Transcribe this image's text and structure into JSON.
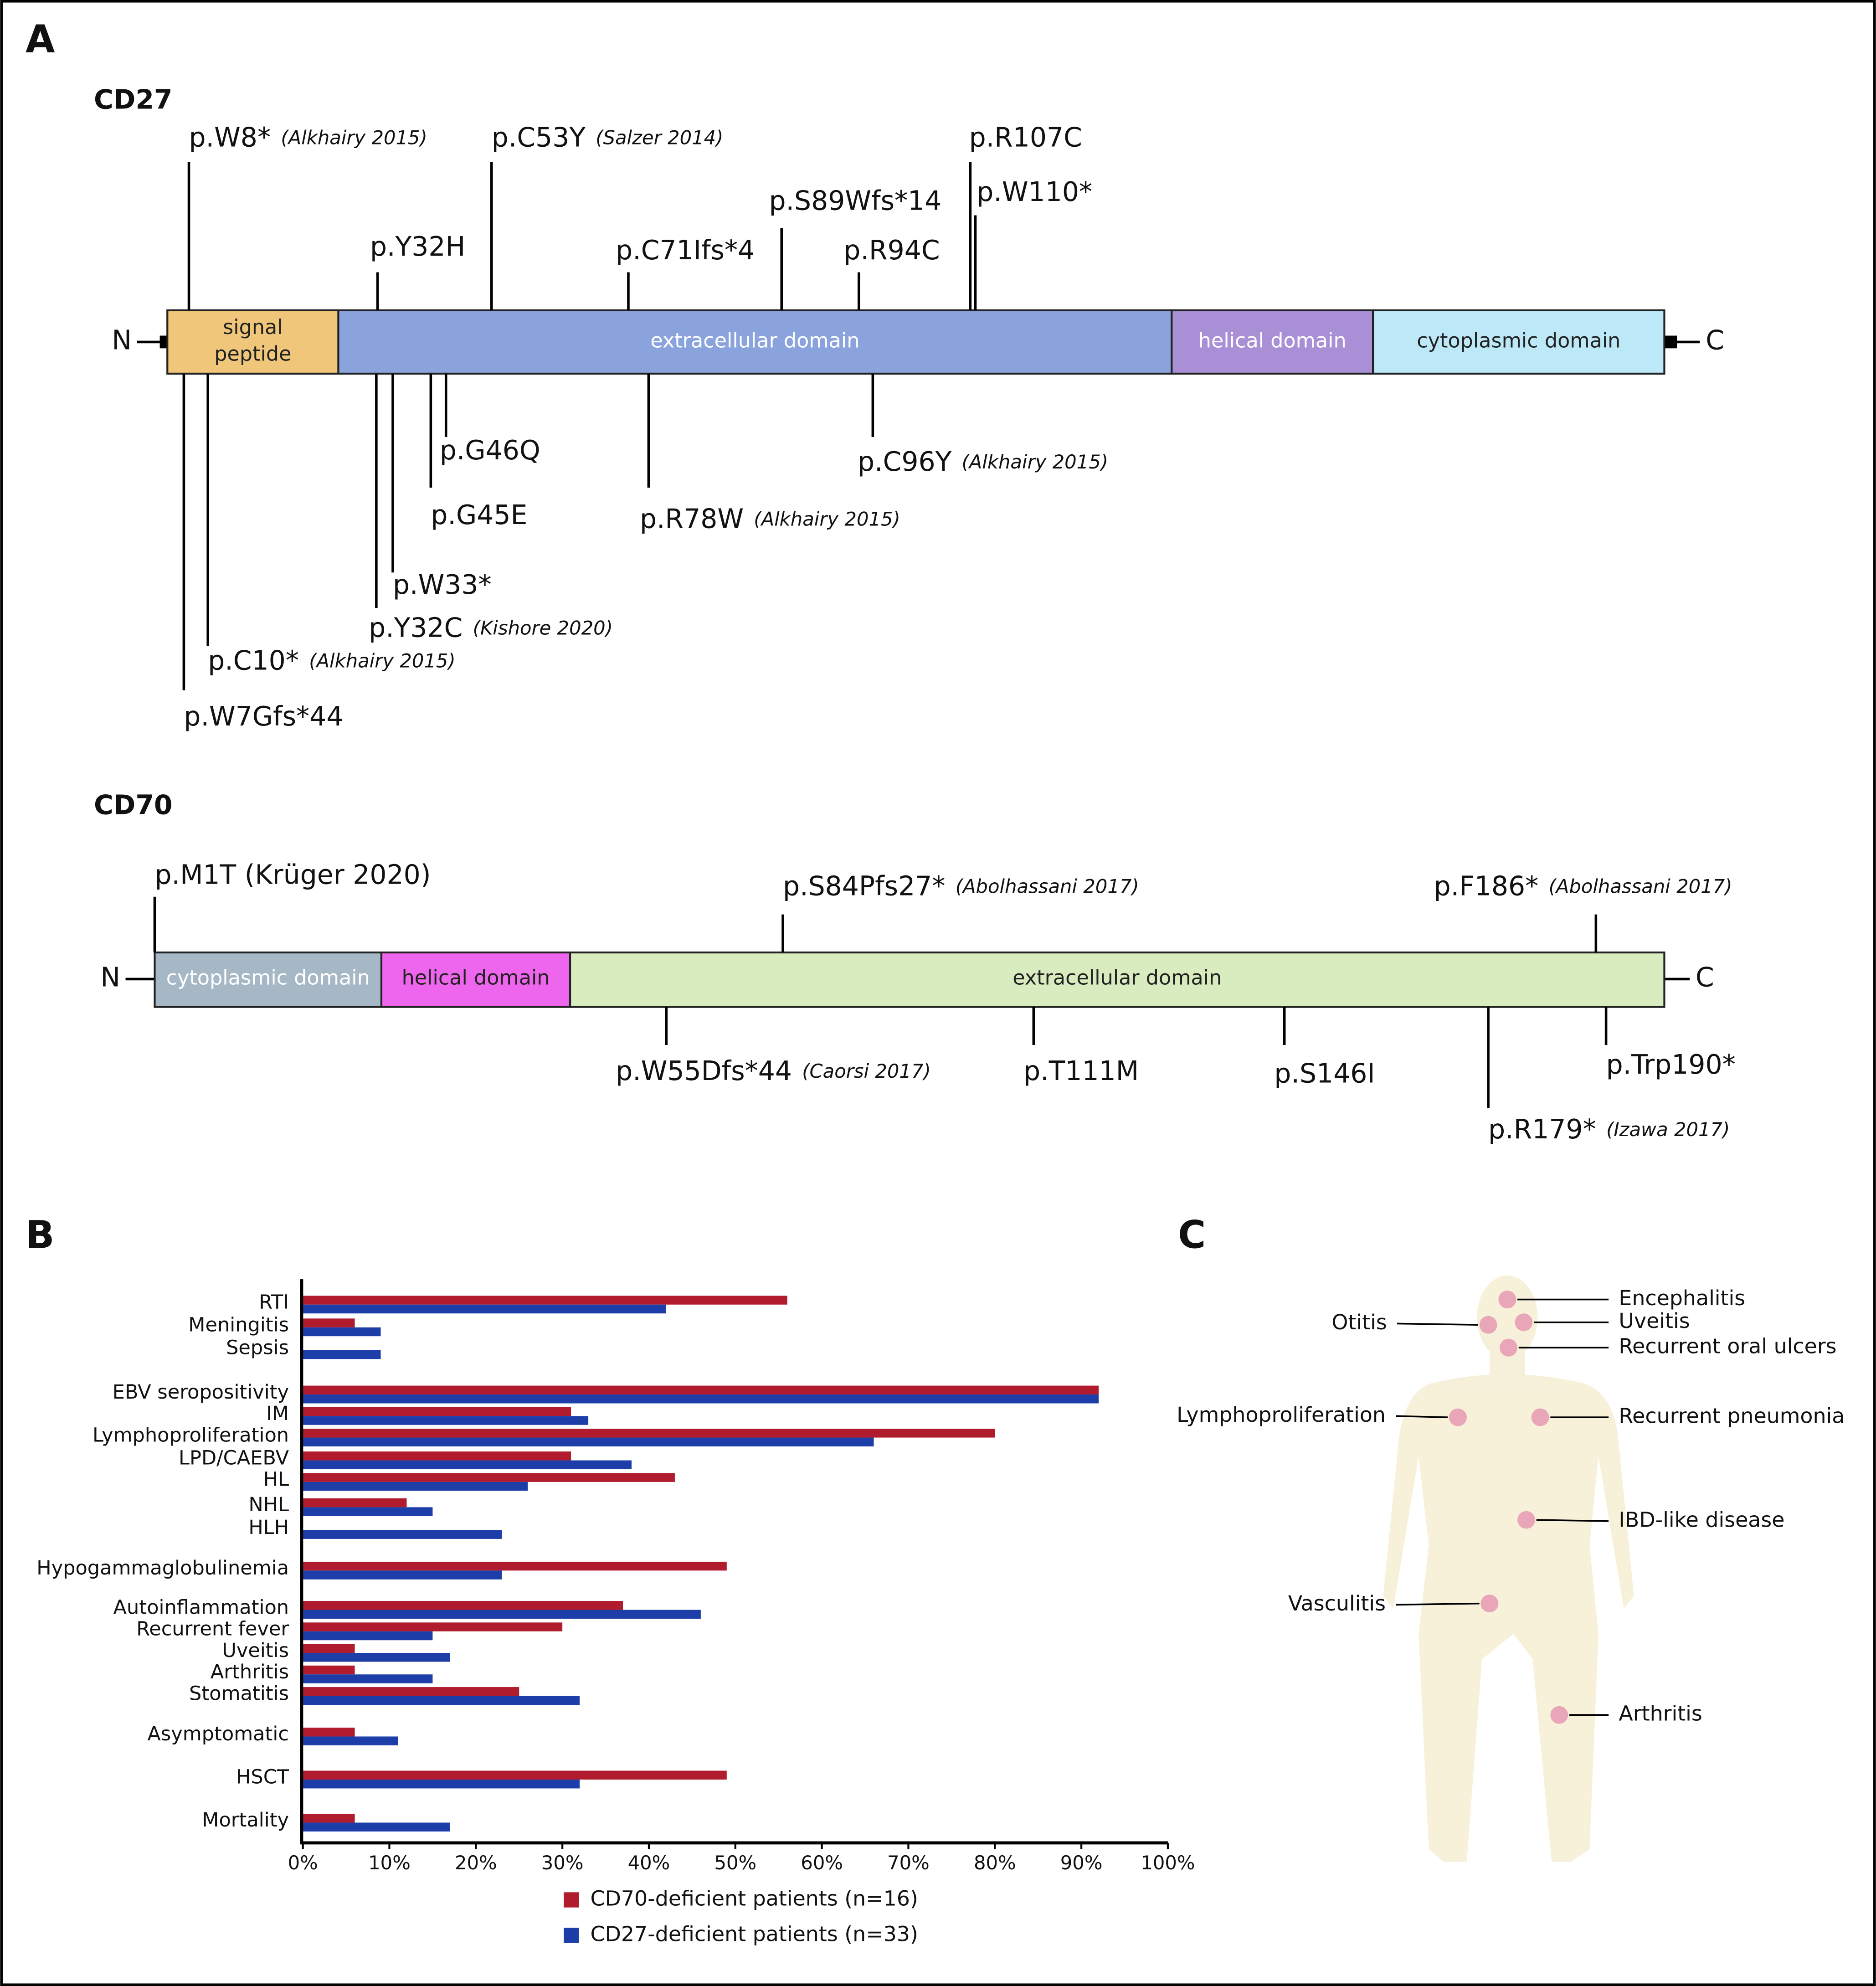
{
  "panel_labels": [
    "A",
    "B",
    "C"
  ],
  "cd27": {
    "title": "CD27",
    "n": "N",
    "c": "C",
    "domains": [
      [
        "signal",
        "peptide"
      ],
      [
        "extracellular domain"
      ],
      [
        "helical domain"
      ],
      [
        "cytoplasmic domain"
      ]
    ],
    "above": [
      {
        "name": "p.W8*",
        "ref": "(Alkhairy 2015)"
      },
      {
        "name": "p.Y32H"
      },
      {
        "name": "p.C53Y",
        "ref": "(Salzer 2014)"
      },
      {
        "name": "p.C71Ifs*4"
      },
      {
        "name": "p.S89Wfs*14"
      },
      {
        "name": "p.R94C"
      },
      {
        "name": "p.R107C"
      },
      {
        "name": "p.W110*"
      }
    ],
    "below": [
      {
        "name": "p.W7Gfs*44"
      },
      {
        "name": "p.C10*",
        "ref": "(Alkhairy 2015)"
      },
      {
        "name": "p.Y32C",
        "ref": "(Kishore 2020)"
      },
      {
        "name": "p.W33*"
      },
      {
        "name": "p.G45E"
      },
      {
        "name": "p.G46Q"
      },
      {
        "name": "p.R78W",
        "ref": "(Alkhairy 2015)"
      },
      {
        "name": "p.C96Y",
        "ref": "(Alkhairy 2015)"
      }
    ]
  },
  "cd70": {
    "title": "CD70",
    "n": "N",
    "c": "C",
    "domains": [
      [
        "cytoplasmic domain"
      ],
      [
        "helical domain"
      ],
      [
        "extracellular domain"
      ]
    ],
    "above": [
      {
        "name": "p.M1T (Krüger 2020)"
      },
      {
        "name": "p.S84Pfs27*",
        "ref": "(Abolhassani 2017)"
      },
      {
        "name": "p.F186*",
        "ref": "(Abolhassani 2017)"
      }
    ],
    "below": [
      {
        "name": "p.W55Dfs*44",
        "ref": "(Caorsi 2017)"
      },
      {
        "name": "p.T111M"
      },
      {
        "name": "p.S146I"
      },
      {
        "name": "p.R179*",
        "ref": "(Izawa 2017)"
      },
      {
        "name": "p.Trp190*"
      }
    ]
  },
  "chart_data": {
    "type": "bar",
    "orientation": "horizontal",
    "categories": [
      "RTI",
      "Meningitis",
      "Sepsis",
      "EBV seropositivity",
      "IM",
      "Lymphoproliferation",
      "LPD/CAEBV",
      "HL",
      "NHL",
      "HLH",
      "Hypogammaglobulinemia",
      "Autoinflammation",
      "Recurrent fever",
      "Uveitis",
      "Arthritis",
      "Stomatitis",
      "Asymptomatic",
      "HSCT",
      "Mortality"
    ],
    "series": [
      {
        "name": "CD70-deficient patients (n=16)",
        "color": "#b01c2e",
        "values": [
          56,
          6,
          0,
          92,
          31,
          80,
          31,
          43,
          12,
          0,
          49,
          37,
          30,
          6,
          6,
          25,
          6,
          49,
          6
        ]
      },
      {
        "name": "CD27-deficient patients (n=33)",
        "color": "#1d3ea8",
        "values": [
          42,
          9,
          9,
          92,
          33,
          66,
          38,
          26,
          15,
          23,
          23,
          46,
          15,
          17,
          15,
          32,
          11,
          32,
          17
        ]
      }
    ],
    "xlim": [
      0,
      100
    ],
    "xticks": [
      {
        "value": 0,
        "label": "0%"
      },
      {
        "value": 10,
        "label": "10%"
      },
      {
        "value": 20,
        "label": "20%"
      },
      {
        "value": 30,
        "label": "30%"
      },
      {
        "value": 40,
        "label": "40%"
      },
      {
        "value": 50,
        "label": "50%"
      },
      {
        "value": 60,
        "label": "60%"
      },
      {
        "value": 70,
        "label": "70%"
      },
      {
        "value": 80,
        "label": "80%"
      },
      {
        "value": 90,
        "label": "90%"
      },
      {
        "value": 100,
        "label": "100%"
      }
    ]
  },
  "panel_c": {
    "labels": [
      "Encephalitis",
      "Uveitis",
      "Otitis",
      "Recurrent oral ulcers",
      "Lymphoproliferation",
      "Recurrent pneumonia",
      "IBD-like disease",
      "Vasculitis",
      "Arthritis"
    ]
  }
}
